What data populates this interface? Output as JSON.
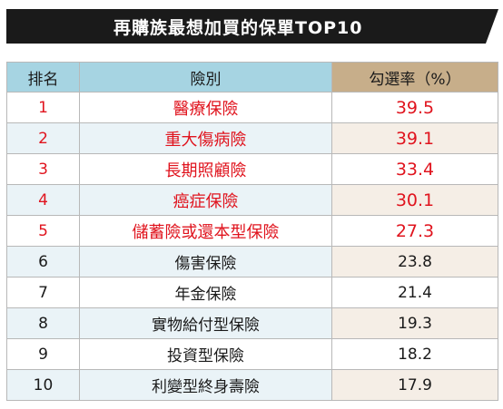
{
  "title": "再購族最想加買的保單TOP10",
  "headers": {
    "rank": "排名",
    "type": "險別",
    "rate": "勾選率（%）"
  },
  "rows": [
    {
      "rank": "1",
      "type": "醫療保險",
      "rate": "39.5"
    },
    {
      "rank": "2",
      "type": "重大傷病險",
      "rate": "39.1"
    },
    {
      "rank": "3",
      "type": "長期照顧險",
      "rate": "33.4"
    },
    {
      "rank": "4",
      "type": "癌症保險",
      "rate": "30.1"
    },
    {
      "rank": "5",
      "type": "儲蓄險或還本型保險",
      "rate": "27.3"
    },
    {
      "rank": "6",
      "type": "傷害保險",
      "rate": "23.8"
    },
    {
      "rank": "7",
      "type": "年金保險",
      "rate": "21.4"
    },
    {
      "rank": "8",
      "type": "實物給付型保險",
      "rate": "19.3"
    },
    {
      "rank": "9",
      "type": "投資型保險",
      "rate": "18.2"
    },
    {
      "rank": "10",
      "type": "利變型終身壽險",
      "rate": "17.9"
    }
  ],
  "colors": {
    "title_bg": "#1a1a1a",
    "header_blue": "#a6d4e2",
    "header_tan": "#c7ae8a",
    "highlight_red": "#e0141e"
  }
}
